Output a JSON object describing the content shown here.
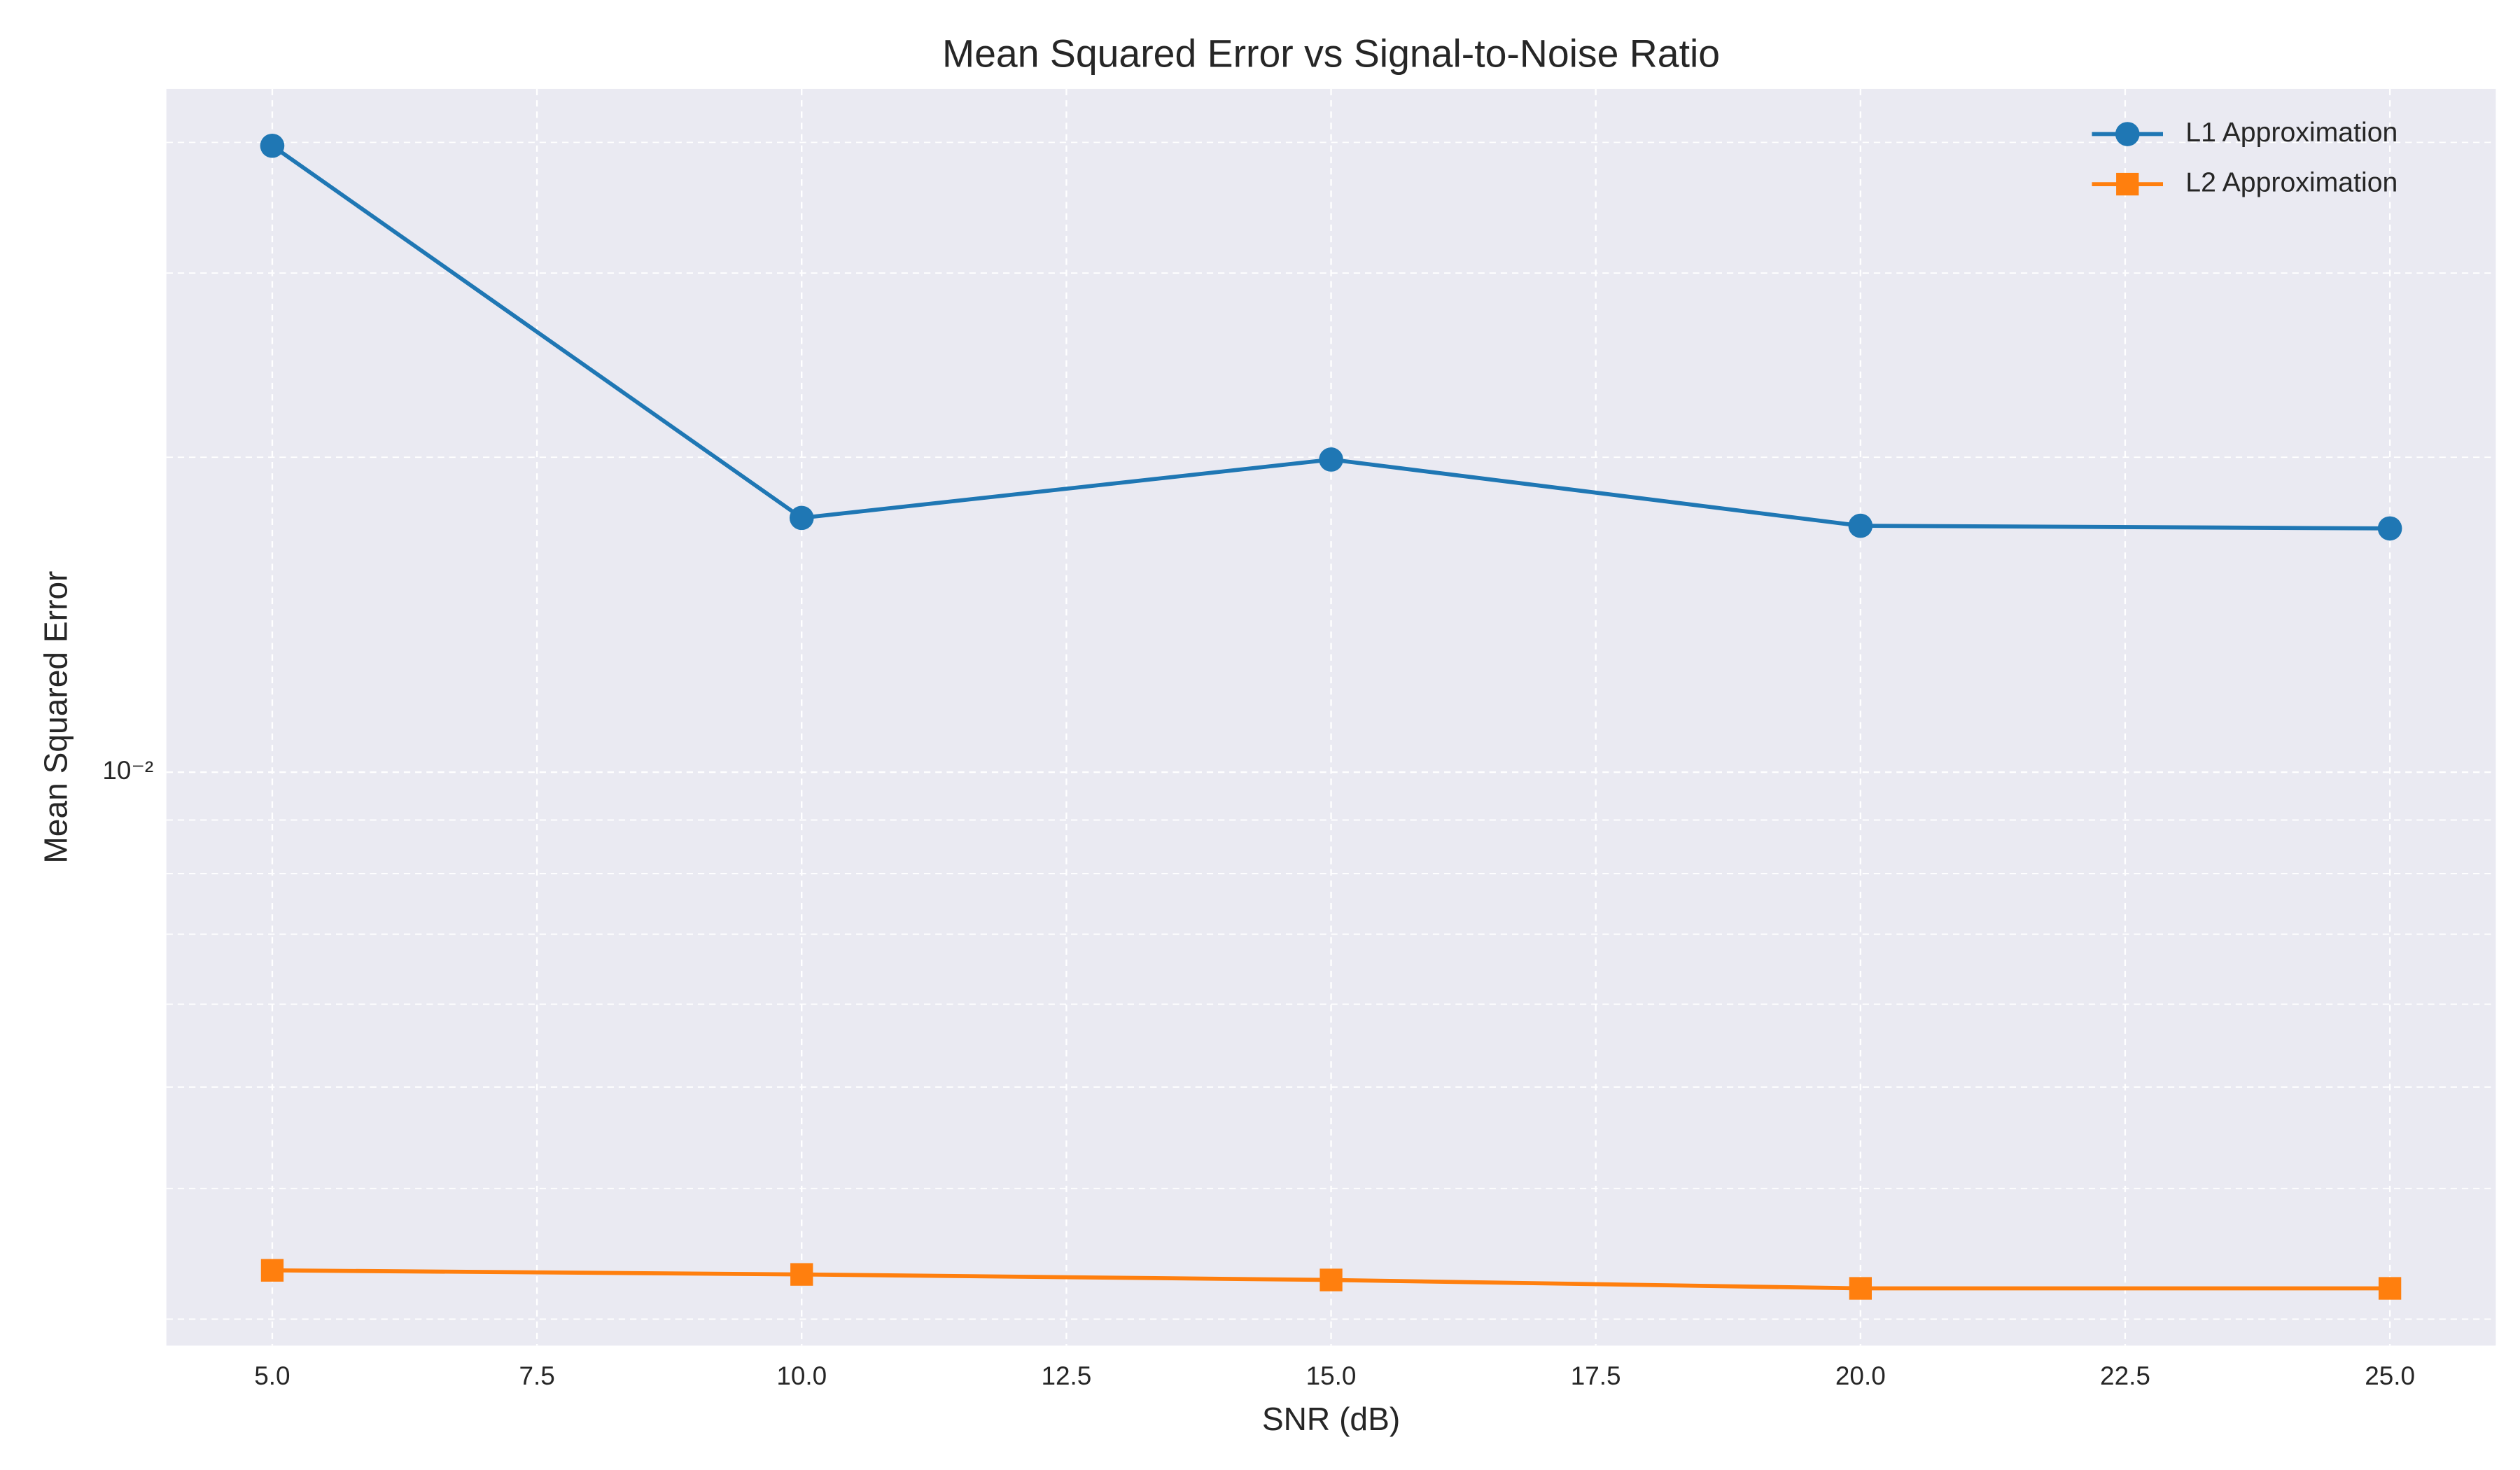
{
  "chart_data": {
    "type": "line",
    "title": "Mean Squared Error vs Signal-to-Noise Ratio",
    "xlabel": "SNR (dB)",
    "ylabel": "Mean Squared Error",
    "x": [
      5,
      10,
      15,
      20,
      25
    ],
    "series": [
      {
        "name": "L1 Approximation",
        "color": "#1f77b4",
        "marker": "circle",
        "values": [
          0.0397,
          0.0175,
          0.0199,
          0.0172,
          0.0171
        ]
      },
      {
        "name": "L2 Approximation",
        "color": "#ff7f0e",
        "marker": "square",
        "values": [
          0.00334,
          0.00331,
          0.00327,
          0.00321,
          0.00321
        ]
      }
    ],
    "xlim": [
      4,
      26
    ],
    "xticks": [
      {
        "value": 5,
        "label": "5.0"
      },
      7.5,
      {
        "value": 10,
        "label": "10.0"
      },
      12.5,
      {
        "value": 15,
        "label": "15.0"
      },
      17.5,
      {
        "value": 20,
        "label": "20.0"
      },
      22.5,
      {
        "value": 25,
        "label": "25.0"
      }
    ],
    "ylim": [
      0.00283,
      0.045
    ],
    "yscale": "log",
    "yticks": [
      {
        "value": 0.01,
        "label": "10⁻²"
      }
    ],
    "yminorticks": [
      0.003,
      0.004,
      0.005,
      0.006,
      0.007,
      0.008,
      0.009,
      0.02,
      0.03,
      0.04
    ],
    "grid": true,
    "legend": "upper right"
  }
}
